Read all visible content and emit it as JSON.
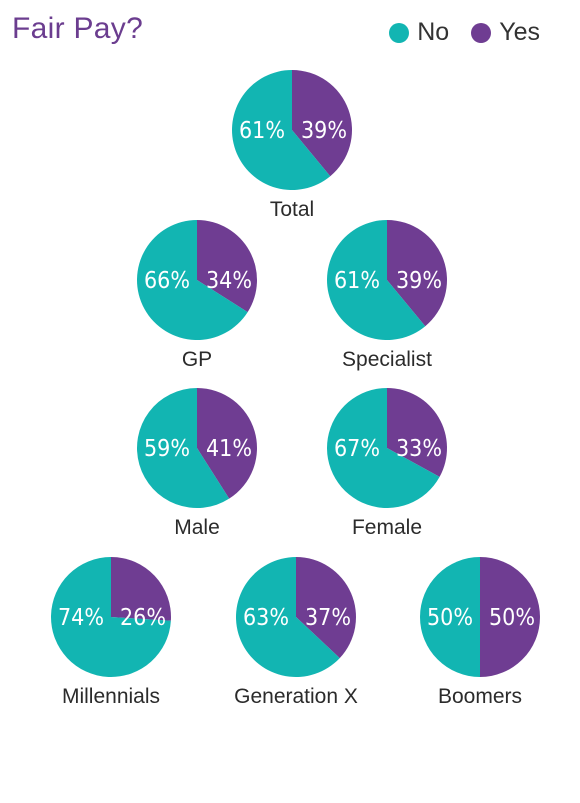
{
  "chart_data": {
    "type": "pie",
    "title": "Fair Pay?",
    "legend": {
      "placement": "top-right",
      "entries": [
        {
          "name": "No",
          "color": "#12b5b2"
        },
        {
          "name": "Yes",
          "color": "#6f3d92"
        }
      ]
    },
    "colors": {
      "no": "#12b5b2",
      "yes": "#6f3d92",
      "title": "#6b3d8f"
    },
    "pies": [
      {
        "label": "Total",
        "no": 61,
        "yes": 39,
        "no_label": "61%",
        "yes_label": "39%"
      },
      {
        "label": "GP",
        "no": 66,
        "yes": 34,
        "no_label": "66%",
        "yes_label": "34%"
      },
      {
        "label": "Specialist",
        "no": 61,
        "yes": 39,
        "no_label": "61%",
        "yes_label": "39%"
      },
      {
        "label": "Male",
        "no": 59,
        "yes": 41,
        "no_label": "59%",
        "yes_label": "41%"
      },
      {
        "label": "Female",
        "no": 67,
        "yes": 33,
        "no_label": "67%",
        "yes_label": "33%"
      },
      {
        "label": "Millennials",
        "no": 74,
        "yes": 26,
        "no_label": "74%",
        "yes_label": "26%"
      },
      {
        "label": "Generation X",
        "no": 63,
        "yes": 37,
        "no_label": "63%",
        "yes_label": "37%"
      },
      {
        "label": "Boomers",
        "no": 50,
        "yes": 50,
        "no_label": "50%",
        "yes_label": "50%"
      }
    ]
  }
}
